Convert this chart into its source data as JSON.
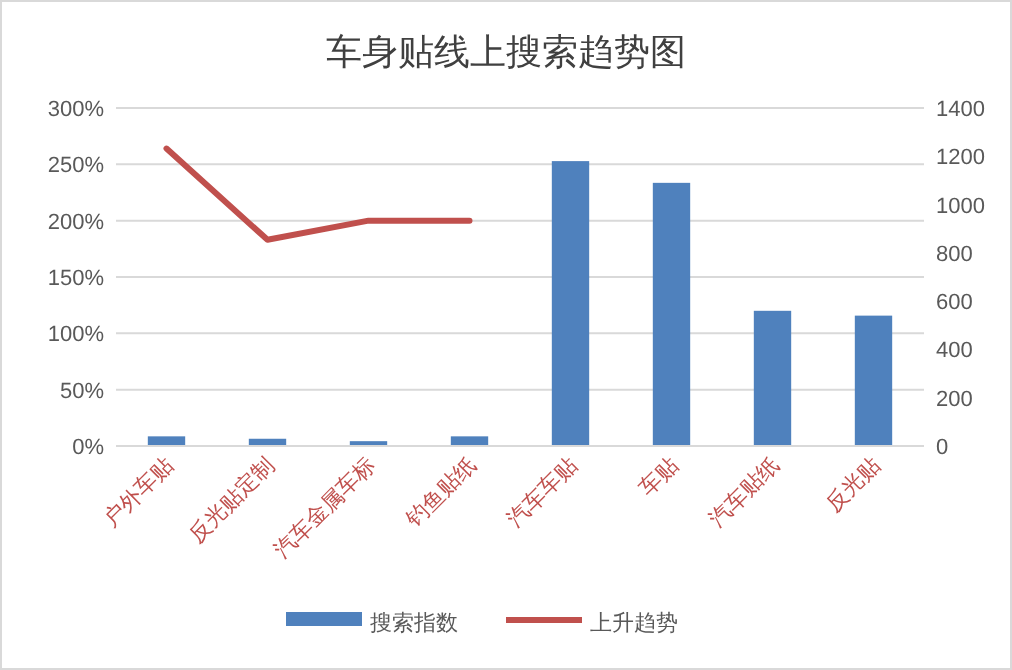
{
  "chart_data": {
    "type": "bar",
    "title": "车身贴线上搜索趋势图",
    "categories": [
      "户外车贴",
      "反光贴定制",
      "汽车金属车标",
      "钓鱼贴纸",
      "汽车车贴",
      "车贴",
      "汽车贴纸",
      "反光贴"
    ],
    "series": [
      {
        "name": "搜索指数",
        "axis": "y2",
        "color": "#4f81bd",
        "values": [
          40,
          30,
          20,
          40,
          1180,
          1090,
          560,
          540
        ]
      },
      {
        "name": "上升趋势",
        "type": "line",
        "axis": "y",
        "color": "#c0504d",
        "values": [
          264,
          183,
          200,
          200,
          null,
          null,
          null,
          null
        ]
      }
    ],
    "ylim": [
      0,
      300
    ],
    "yticks": [
      {
        "value": 0,
        "label": "0%"
      },
      {
        "value": 50,
        "label": "50%"
      },
      {
        "value": 100,
        "label": "100%"
      },
      {
        "value": 150,
        "label": "150%"
      },
      {
        "value": 200,
        "label": "200%"
      },
      {
        "value": 250,
        "label": "250%"
      },
      {
        "value": 300,
        "label": "300%"
      }
    ],
    "y2lim": [
      0,
      1400
    ],
    "y2ticks": [
      0,
      200,
      400,
      600,
      800,
      1000,
      1200,
      1400
    ],
    "grid": "y",
    "legend": "bottom"
  }
}
